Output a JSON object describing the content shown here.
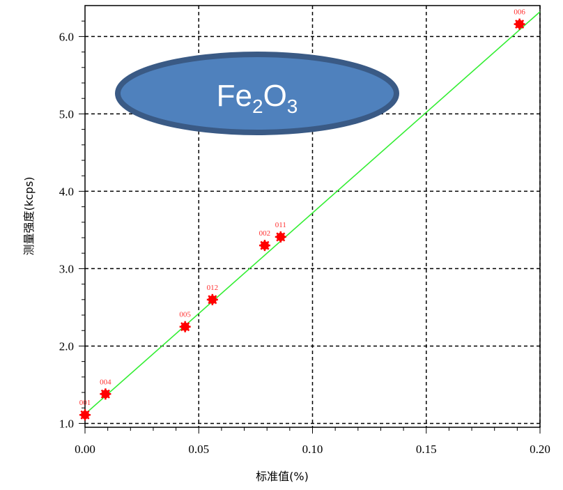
{
  "chart_data": {
    "type": "scatter",
    "title": "",
    "xlabel": "标准值(%)",
    "ylabel": "测量强度(kcps)",
    "xlim": [
      0.0,
      0.2
    ],
    "ylim": [
      0.95,
      6.4
    ],
    "x_ticks": [
      "0.00",
      "0.05",
      "0.10",
      "0.15",
      "0.20"
    ],
    "y_ticks": [
      "1.0",
      "2.0",
      "3.0",
      "4.0",
      "5.0",
      "6.0"
    ],
    "x_tick_values": [
      0.0,
      0.05,
      0.1,
      0.15,
      0.2
    ],
    "y_tick_values": [
      1.0,
      2.0,
      3.0,
      4.0,
      5.0,
      6.0
    ],
    "grid": true,
    "series": [
      {
        "type": "scatter",
        "color": "#ff0000",
        "points": [
          {
            "label": "001",
            "x": 0.0,
            "y": 1.11
          },
          {
            "label": "004",
            "x": 0.009,
            "y": 1.38
          },
          {
            "label": "005",
            "x": 0.044,
            "y": 2.25
          },
          {
            "label": "012",
            "x": 0.056,
            "y": 2.6
          },
          {
            "label": "002",
            "x": 0.079,
            "y": 3.3
          },
          {
            "label": "011",
            "x": 0.086,
            "y": 3.41
          },
          {
            "label": "006",
            "x": 0.191,
            "y": 6.16
          }
        ]
      },
      {
        "type": "line",
        "color": "#33ee33",
        "x": [
          0.0,
          0.2
        ],
        "y": [
          1.12,
          6.32
        ]
      }
    ],
    "annotation": {
      "base": "Fe",
      "sub1": "2",
      "mid": "O",
      "sub2": "3",
      "fill": "#4f81bd",
      "stroke": "#3a5a85"
    }
  }
}
